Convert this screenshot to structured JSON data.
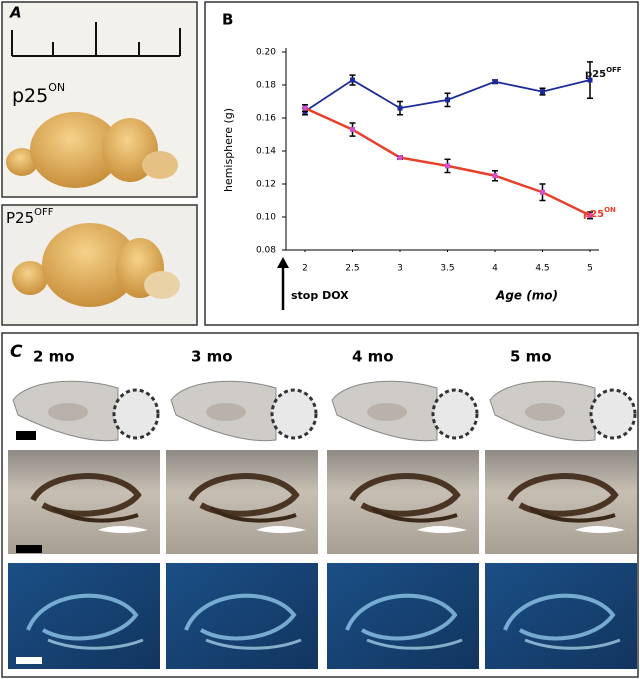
{
  "panel_a": {
    "label": "A",
    "top_label": {
      "base": "p25",
      "sup": "ON"
    },
    "bottom_label": {
      "base": "P25",
      "sup": "OFF"
    }
  },
  "chart_data": {
    "type": "line",
    "panel_label": "B",
    "y_label": "hemisphere (g)",
    "x_label": "Age (mo)",
    "annotation": "stop DOX",
    "x": [
      2,
      2.5,
      3,
      3.5,
      4,
      4.5,
      5
    ],
    "series": [
      {
        "name": {
          "base": "p25",
          "sup": "OFF"
        },
        "color": "#1c2a9c",
        "label_color": "#111111",
        "marker_color": "#1c2a9c",
        "values": [
          0.164,
          0.183,
          0.166,
          0.171,
          0.182,
          0.176,
          0.183
        ],
        "errors": [
          0.002,
          0.003,
          0.004,
          0.004,
          0.001,
          0.002,
          0.011
        ]
      },
      {
        "name": {
          "base": "p25",
          "sup": "ON"
        },
        "color": "#e8402a",
        "label_color": "#e8402a",
        "marker_color": "#d050d0",
        "values": [
          0.166,
          0.153,
          0.136,
          0.131,
          0.125,
          0.115,
          0.101
        ],
        "errors": [
          0.002,
          0.004,
          0.001,
          0.004,
          0.003,
          0.005,
          0.002
        ]
      }
    ],
    "xlim": [
      1.8,
      5.2
    ],
    "xticks": [
      2,
      2.5,
      3,
      3.5,
      4,
      4.5,
      5
    ],
    "ylim": [
      0.08,
      0.2
    ],
    "yticks": [
      0.08,
      {
        "value": 0.1,
        "label": "0.10"
      },
      0.12,
      0.14,
      0.16,
      0.18,
      {
        "value": 0.2,
        "label": "0.20"
      }
    ]
  },
  "panel_c": {
    "label": "C",
    "columns": [
      "2 mo",
      "3 mo",
      "4 mo",
      "5 mo"
    ]
  }
}
